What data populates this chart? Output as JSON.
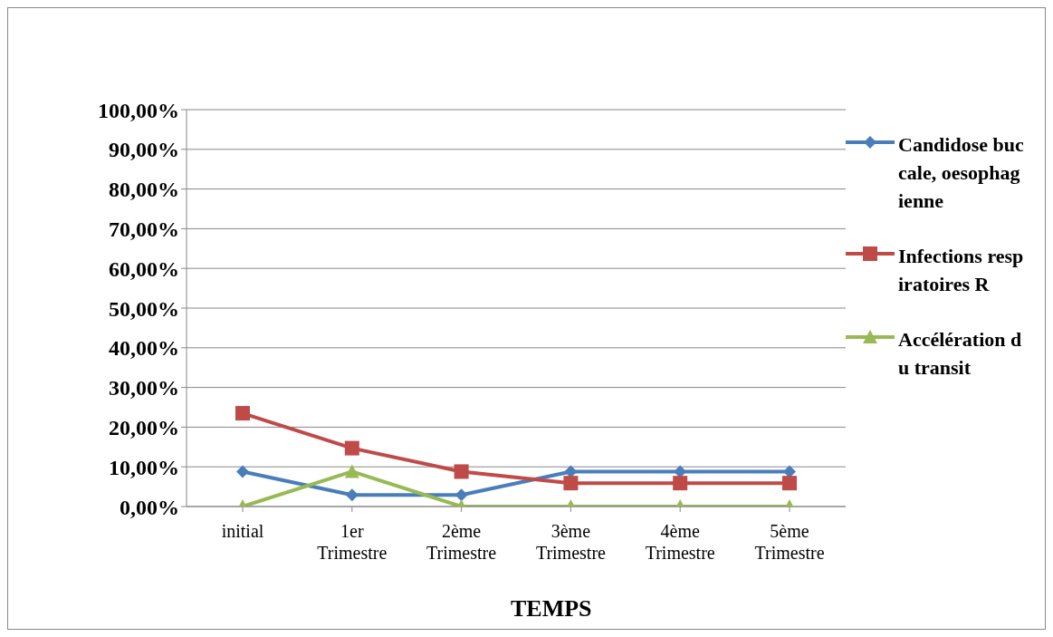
{
  "chart_data": {
    "type": "line",
    "xlabel": "TEMPS",
    "categories": [
      "initial",
      "1er Trimestre",
      "2ème Trimestre",
      "3ème Trimestre",
      "4ème Trimestre",
      "5ème Trimestre"
    ],
    "series": [
      {
        "name": "Candidose buccale, oesophagienne",
        "color": "#4a7ebb",
        "marker": "diamond",
        "values": [
          8.8,
          2.9,
          2.9,
          8.8,
          8.8,
          8.8
        ]
      },
      {
        "name": "Infections respiratoires R",
        "color": "#be4b48",
        "marker": "square",
        "values": [
          23.5,
          14.7,
          8.8,
          5.9,
          5.9,
          5.9
        ]
      },
      {
        "name": "Accélération du transit",
        "color": "#98b954",
        "marker": "triangle",
        "values": [
          0,
          8.8,
          0,
          0,
          0,
          0
        ]
      }
    ],
    "ylim": [
      0,
      100
    ],
    "yticks": [
      {
        "value": 0,
        "label": "0,00%"
      },
      {
        "value": 10,
        "label": "10,00%"
      },
      {
        "value": 20,
        "label": "20,00%"
      },
      {
        "value": 30,
        "label": "30,00%"
      },
      {
        "value": 40,
        "label": "40,00%"
      },
      {
        "value": 50,
        "label": "50,00%"
      },
      {
        "value": 60,
        "label": "60,00%"
      },
      {
        "value": 70,
        "label": "70,00%"
      },
      {
        "value": 80,
        "label": "80,00%"
      },
      {
        "value": 90,
        "label": "90,00%"
      },
      {
        "value": 100,
        "label": "100,00%"
      }
    ],
    "grid": "y",
    "legend": "right",
    "line_style": "solid"
  }
}
